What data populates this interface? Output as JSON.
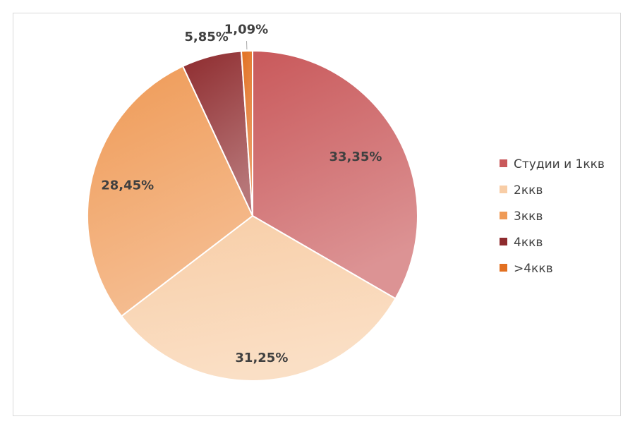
{
  "chart_data": {
    "type": "pie",
    "categories": [
      "Студии и 1ккв",
      "2ккв",
      "3ккв",
      "4ккв",
      ">4ккв"
    ],
    "values": [
      33.35,
      31.25,
      28.45,
      5.85,
      1.09
    ],
    "data_labels": [
      "33,35%",
      "31,25%",
      "28,45%",
      "5,85%",
      "1,09%"
    ],
    "colors": [
      "#c9595b",
      "#f8cda6",
      "#ef9a56",
      "#8e2b2e",
      "#e27021"
    ],
    "title": "",
    "legend_position": "right",
    "grid": false
  }
}
